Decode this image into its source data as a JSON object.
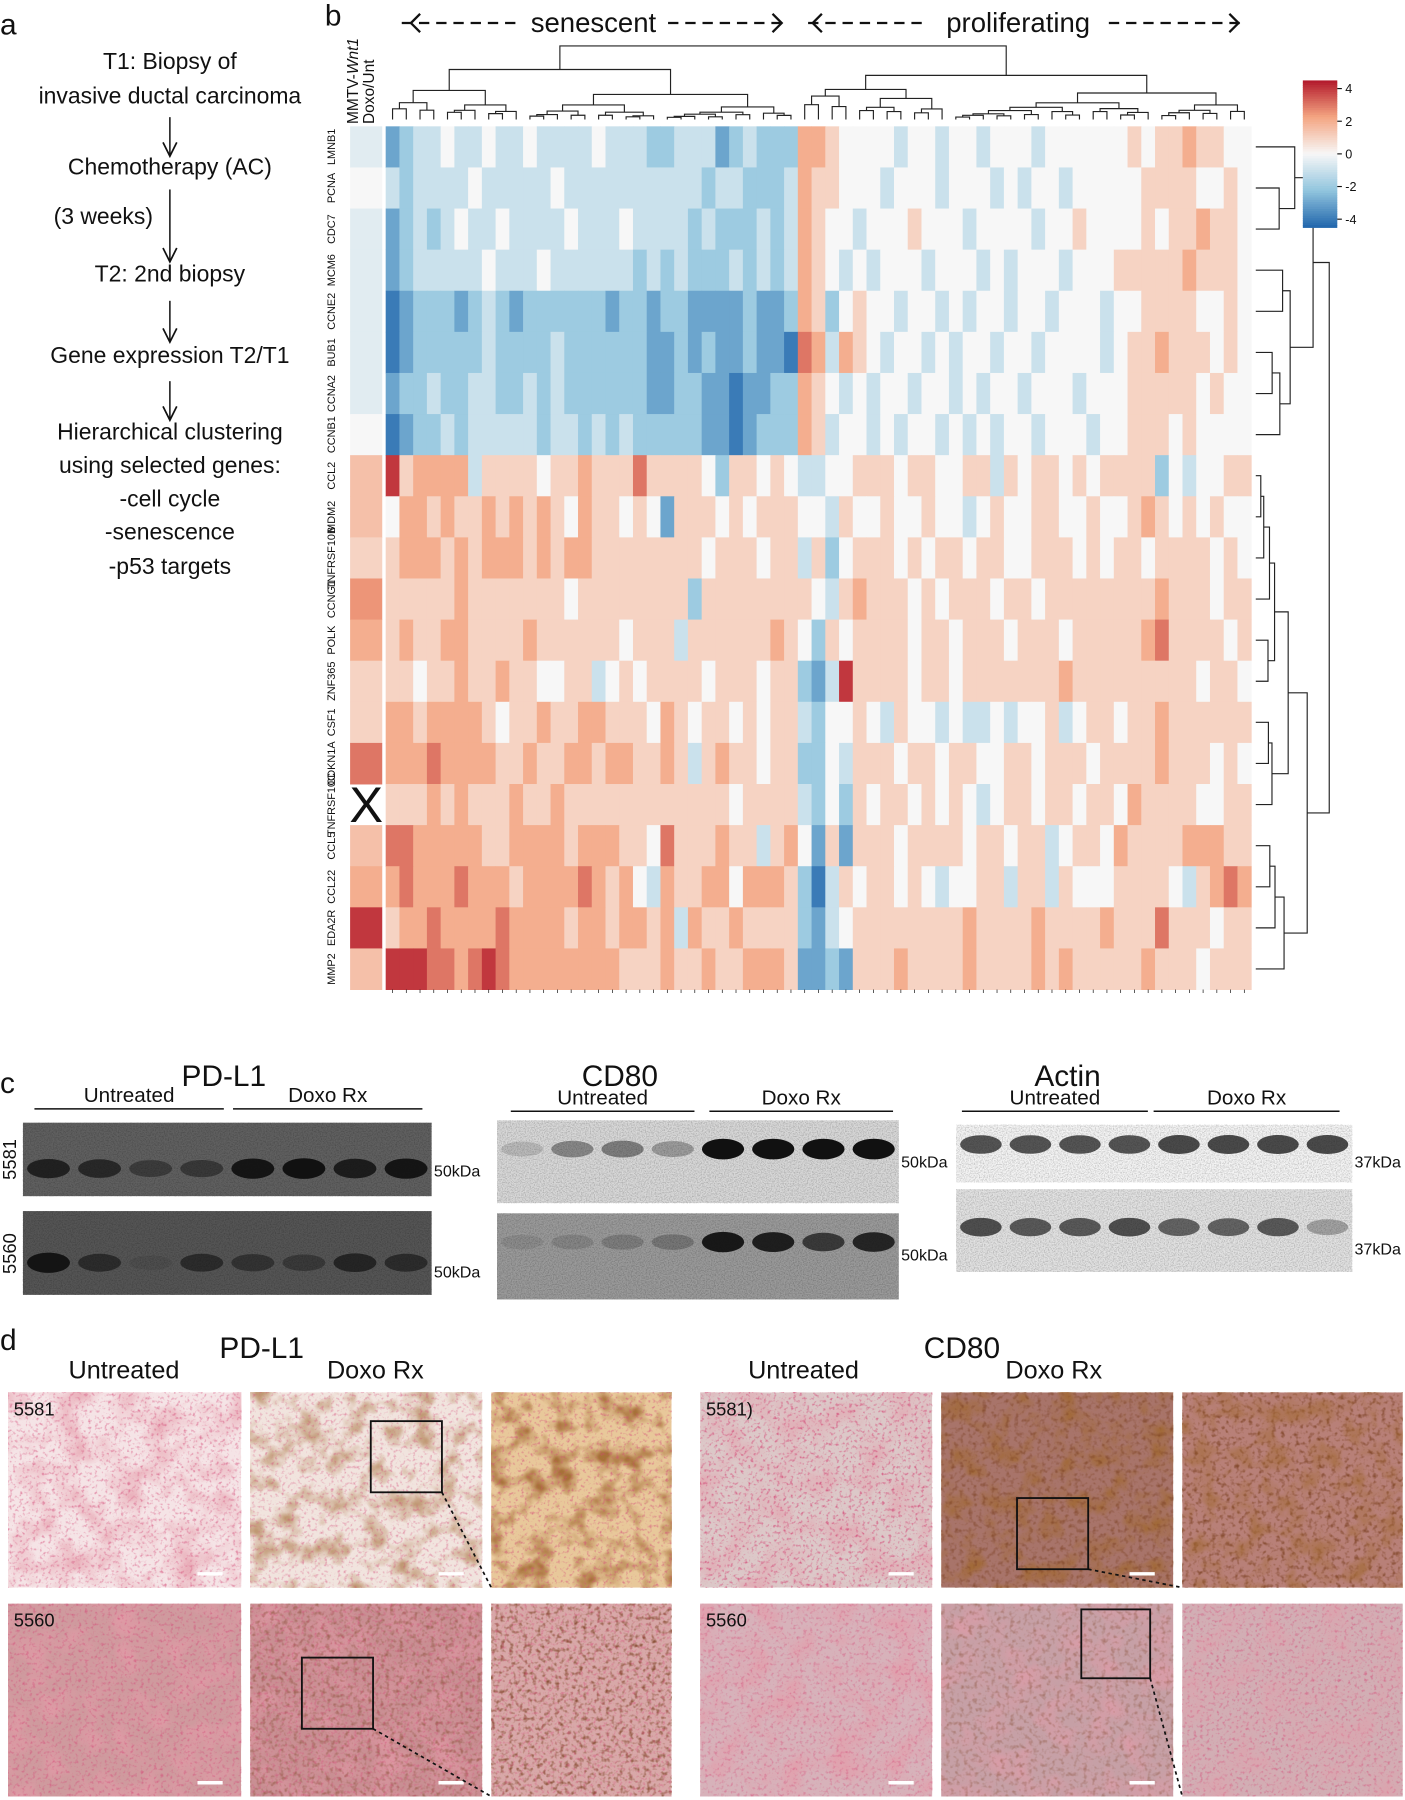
{
  "panel_a": {
    "label": "a",
    "steps": [
      "T1: Biopsy of",
      "invasive ductal carcinoma",
      "Chemotherapy (AC)",
      "T2: 2nd biopsy",
      "Gene expression T2/T1",
      "Hierarchical clustering",
      "using selected genes:",
      "-cell cycle",
      "-senescence",
      "-p53 targets"
    ],
    "interval": "(3 weeks)"
  },
  "chart_data": {
    "type": "heatmap",
    "label": "b",
    "column_groups": [
      "senescent",
      "proliferating"
    ],
    "row_header": [
      "MMTV-",
      "Wnt1"
    ],
    "reference_label": "Doxo/Unt",
    "missing_mark": "X",
    "rows": [
      "LMNB1",
      "PCNA",
      "CDC7",
      "MCM6",
      "CCNE2",
      "BUB1",
      "CCNA2",
      "CCNB1",
      "CCL2",
      "MDM2",
      "TNFRSF10B",
      "CCNG1",
      "POLK",
      "ZNF365",
      "CSF1",
      "CDKN1A",
      "TNFRSF10C",
      "CCL5",
      "CCL22",
      "EDA2R",
      "MMP2"
    ],
    "reference_values": [
      -0.5,
      0,
      -0.5,
      -0.5,
      -0.5,
      -0.5,
      -0.5,
      0,
      1.5,
      1.5,
      1,
      2.5,
      2,
      1,
      1,
      3,
      null,
      1.5,
      2,
      4,
      1.5
    ],
    "values": [
      [
        -3,
        -2,
        -1,
        -1,
        0,
        -1,
        -1,
        0,
        -1,
        -1,
        0,
        -1,
        -1,
        -1,
        -1,
        0,
        -1,
        -1,
        -1,
        -2,
        -2,
        -1,
        -1,
        -1,
        -3,
        -2,
        -1,
        -2,
        -2,
        -2,
        2,
        2,
        1,
        0,
        0,
        0,
        0,
        -1,
        0,
        0,
        -1,
        0,
        0,
        -1,
        0,
        0,
        0,
        -1,
        0,
        0,
        0,
        0,
        0,
        0,
        1,
        0,
        1,
        1,
        2,
        1,
        1,
        0,
        0
      ],
      [
        -1,
        -2,
        -1,
        -1,
        -1,
        -1,
        0,
        -1,
        -1,
        -1,
        -1,
        -1,
        0,
        -1,
        -1,
        -1,
        -1,
        -1,
        -1,
        -1,
        -1,
        -1,
        -1,
        -2,
        -1,
        -1,
        -2,
        -2,
        -2,
        -1,
        2,
        1,
        1,
        0,
        0,
        0,
        -1,
        0,
        0,
        0,
        -1,
        0,
        0,
        0,
        -1,
        0,
        -1,
        0,
        0,
        -1,
        0,
        0,
        0,
        0,
        0,
        1,
        1,
        1,
        1,
        0,
        0,
        1,
        0
      ],
      [
        -3,
        -2,
        -1,
        -2,
        -1,
        0,
        -1,
        -1,
        0,
        -1,
        -1,
        -1,
        -1,
        0,
        -1,
        -1,
        -1,
        0,
        -1,
        -1,
        -1,
        -1,
        -2,
        -1,
        -2,
        -2,
        -2,
        -1,
        -2,
        -1,
        2,
        1,
        0,
        0,
        -1,
        0,
        0,
        0,
        1,
        0,
        0,
        0,
        -1,
        0,
        0,
        0,
        0,
        -1,
        0,
        0,
        1,
        0,
        0,
        0,
        0,
        1,
        0,
        1,
        1,
        2,
        1,
        1,
        0
      ],
      [
        -3,
        -2,
        -1,
        -1,
        -1,
        -1,
        -1,
        0,
        -1,
        -1,
        -1,
        0,
        -1,
        -1,
        -1,
        -1,
        -1,
        -1,
        -2,
        -1,
        -2,
        -1,
        -2,
        -2,
        -2,
        -1,
        -2,
        -1,
        -2,
        -1,
        2,
        1,
        0,
        -1,
        0,
        -1,
        0,
        0,
        0,
        -1,
        0,
        0,
        0,
        -1,
        0,
        -1,
        0,
        0,
        0,
        -1,
        0,
        0,
        0,
        1,
        1,
        1,
        1,
        1,
        2,
        1,
        1,
        1,
        0
      ],
      [
        -4,
        -3,
        -2,
        -2,
        -2,
        -3,
        -2,
        -1,
        -2,
        -3,
        -2,
        -2,
        -2,
        -2,
        -2,
        -2,
        -3,
        -2,
        -2,
        -3,
        -2,
        -2,
        -3,
        -3,
        -3,
        -3,
        -2,
        -3,
        -3,
        -2,
        2,
        1,
        -2,
        0,
        1,
        0,
        0,
        -1,
        0,
        0,
        -1,
        0,
        -1,
        0,
        0,
        -1,
        0,
        0,
        -1,
        0,
        0,
        0,
        -1,
        0,
        0,
        1,
        1,
        1,
        1,
        0,
        0,
        1,
        0
      ],
      [
        -4,
        -3,
        -2,
        -2,
        -2,
        -2,
        -2,
        -1,
        -2,
        -2,
        -2,
        -2,
        -1,
        -2,
        -2,
        -2,
        -2,
        -2,
        -2,
        -3,
        -3,
        -2,
        -3,
        -2,
        -3,
        -3,
        -2,
        -3,
        -3,
        -4,
        3,
        2,
        -1,
        2,
        1,
        0,
        -1,
        0,
        0,
        -1,
        0,
        -1,
        0,
        0,
        -1,
        0,
        0,
        -1,
        0,
        0,
        0,
        0,
        -1,
        0,
        1,
        1,
        2,
        1,
        1,
        1,
        0,
        1,
        0
      ],
      [
        -3,
        -2,
        -2,
        -1,
        -2,
        -2,
        -1,
        -1,
        -2,
        -2,
        -1,
        -2,
        -1,
        -2,
        -2,
        -2,
        -2,
        -2,
        -2,
        -3,
        -3,
        -2,
        -2,
        -3,
        -3,
        -4,
        -3,
        -3,
        -2,
        -2,
        2,
        1,
        0,
        -1,
        0,
        -1,
        0,
        0,
        -1,
        0,
        0,
        -1,
        0,
        -1,
        0,
        0,
        -1,
        0,
        0,
        0,
        -1,
        0,
        0,
        0,
        1,
        1,
        1,
        1,
        1,
        0,
        1,
        0,
        0
      ],
      [
        -4,
        -3,
        -2,
        -2,
        -1,
        -2,
        -1,
        -1,
        -1,
        -1,
        -1,
        -2,
        -1,
        -1,
        -2,
        -1,
        -2,
        -1,
        -2,
        -2,
        -2,
        -2,
        -2,
        -3,
        -3,
        -4,
        -3,
        -2,
        -2,
        -2,
        2,
        1,
        -1,
        0,
        0,
        -1,
        0,
        -1,
        0,
        0,
        -1,
        0,
        -1,
        0,
        -1,
        0,
        0,
        -1,
        0,
        0,
        0,
        -1,
        0,
        0,
        1,
        1,
        1,
        0,
        1,
        0,
        0,
        0,
        0
      ],
      [
        4,
        1,
        2,
        2,
        2,
        2,
        -1,
        1,
        1,
        1,
        1,
        0,
        1,
        1,
        2,
        1,
        1,
        1,
        3,
        1,
        1,
        1,
        1,
        0,
        -2,
        1,
        1,
        0,
        1,
        0,
        -1,
        -1,
        0,
        0,
        1,
        1,
        1,
        0,
        1,
        1,
        0,
        0,
        1,
        1,
        -1,
        1,
        0,
        1,
        1,
        0,
        1,
        0,
        1,
        1,
        1,
        1,
        -2,
        0,
        -1,
        0,
        0,
        1,
        1
      ],
      [
        0,
        2,
        2,
        1,
        2,
        1,
        1,
        2,
        1,
        2,
        1,
        2,
        1,
        0,
        2,
        1,
        1,
        0,
        1,
        0,
        -3,
        1,
        1,
        1,
        0,
        1,
        0,
        1,
        1,
        1,
        0,
        0,
        -1,
        1,
        0,
        0,
        1,
        0,
        0,
        1,
        0,
        0,
        -1,
        0,
        1,
        0,
        0,
        1,
        1,
        0,
        0,
        1,
        0,
        0,
        1,
        2,
        1,
        0,
        1,
        0,
        1,
        0,
        0
      ],
      [
        1,
        2,
        2,
        2,
        1,
        2,
        1,
        2,
        2,
        2,
        1,
        2,
        1,
        2,
        2,
        1,
        1,
        1,
        1,
        1,
        1,
        1,
        1,
        0,
        1,
        1,
        1,
        0,
        1,
        1,
        -1,
        1,
        -2,
        0,
        1,
        1,
        1,
        0,
        1,
        0,
        1,
        1,
        0,
        1,
        1,
        0,
        0,
        1,
        1,
        1,
        0,
        1,
        0,
        1,
        1,
        0,
        1,
        1,
        1,
        1,
        0,
        1,
        0
      ],
      [
        1,
        1,
        1,
        1,
        1,
        2,
        1,
        1,
        1,
        1,
        1,
        1,
        1,
        0,
        1,
        1,
        1,
        1,
        1,
        1,
        1,
        1,
        -2,
        1,
        1,
        1,
        1,
        1,
        1,
        1,
        1,
        0,
        -1,
        1,
        2,
        1,
        1,
        1,
        0,
        1,
        0,
        1,
        1,
        1,
        0,
        1,
        1,
        0,
        1,
        1,
        1,
        1,
        1,
        1,
        1,
        1,
        2,
        1,
        1,
        1,
        0,
        1,
        1
      ],
      [
        1,
        2,
        1,
        1,
        2,
        2,
        1,
        1,
        1,
        1,
        2,
        1,
        1,
        1,
        1,
        1,
        1,
        0,
        1,
        1,
        1,
        -1,
        1,
        1,
        1,
        1,
        1,
        1,
        2,
        1,
        0,
        -2,
        1,
        0,
        1,
        1,
        1,
        1,
        0,
        1,
        1,
        0,
        1,
        1,
        1,
        0,
        1,
        1,
        1,
        0,
        1,
        1,
        1,
        1,
        1,
        2,
        3,
        1,
        1,
        1,
        1,
        0,
        1
      ],
      [
        1,
        1,
        0,
        1,
        1,
        2,
        1,
        1,
        2,
        1,
        1,
        0,
        0,
        1,
        1,
        -1,
        0,
        1,
        0,
        1,
        1,
        1,
        1,
        0,
        1,
        1,
        1,
        0,
        1,
        1,
        -2,
        -3,
        -1,
        4,
        1,
        1,
        1,
        1,
        0,
        1,
        1,
        0,
        1,
        1,
        1,
        1,
        1,
        1,
        1,
        2,
        1,
        1,
        1,
        1,
        1,
        1,
        1,
        1,
        1,
        0,
        1,
        1,
        0
      ],
      [
        2,
        2,
        1,
        2,
        2,
        2,
        2,
        1,
        0,
        1,
        1,
        2,
        1,
        1,
        2,
        2,
        1,
        1,
        1,
        0,
        2,
        1,
        0,
        1,
        1,
        0,
        1,
        0,
        1,
        1,
        -1,
        -2,
        0,
        0,
        1,
        0,
        -1,
        1,
        0,
        0,
        -1,
        0,
        -1,
        -1,
        0,
        -1,
        0,
        0,
        1,
        -1,
        0,
        1,
        1,
        0,
        1,
        1,
        2,
        1,
        1,
        1,
        1,
        1,
        1
      ],
      [
        2,
        2,
        2,
        3,
        2,
        2,
        2,
        2,
        1,
        1,
        2,
        1,
        1,
        2,
        2,
        1,
        2,
        2,
        1,
        1,
        2,
        1,
        -1,
        1,
        2,
        1,
        1,
        0,
        1,
        1,
        -2,
        -2,
        0,
        -1,
        1,
        1,
        1,
        0,
        1,
        1,
        0,
        1,
        1,
        0,
        0,
        1,
        1,
        0,
        1,
        1,
        1,
        0,
        1,
        1,
        1,
        1,
        2,
        1,
        1,
        1,
        0,
        1,
        0
      ],
      [
        1,
        1,
        1,
        2,
        1,
        2,
        1,
        1,
        1,
        2,
        1,
        1,
        2,
        1,
        1,
        1,
        1,
        1,
        1,
        1,
        1,
        1,
        1,
        1,
        1,
        0,
        1,
        1,
        1,
        1,
        -1,
        -2,
        0,
        -2,
        1,
        0,
        1,
        1,
        0,
        1,
        0,
        1,
        0,
        -1,
        0,
        1,
        1,
        0,
        1,
        1,
        0,
        1,
        1,
        0,
        2,
        1,
        1,
        1,
        1,
        0,
        0,
        1,
        1
      ],
      [
        3,
        3,
        2,
        2,
        2,
        2,
        2,
        1,
        1,
        2,
        2,
        2,
        2,
        1,
        2,
        2,
        2,
        1,
        1,
        0,
        3,
        1,
        1,
        1,
        2,
        1,
        1,
        -1,
        1,
        2,
        0,
        -3,
        1,
        -3,
        1,
        1,
        1,
        0,
        1,
        1,
        1,
        1,
        0,
        1,
        1,
        0,
        1,
        1,
        -1,
        0,
        1,
        1,
        0,
        2,
        1,
        1,
        1,
        1,
        2,
        2,
        2,
        1,
        1
      ],
      [
        2,
        3,
        2,
        2,
        2,
        3,
        2,
        2,
        2,
        1,
        2,
        2,
        2,
        2,
        3,
        2,
        1,
        2,
        0,
        -1,
        2,
        1,
        1,
        2,
        2,
        0,
        2,
        2,
        2,
        1,
        -2,
        -4,
        -1,
        1,
        0,
        1,
        1,
        0,
        1,
        0,
        -1,
        0,
        0,
        1,
        1,
        -1,
        1,
        1,
        -1,
        1,
        0,
        0,
        0,
        1,
        1,
        1,
        1,
        0,
        -1,
        1,
        2,
        3,
        2
      ],
      [
        1,
        2,
        2,
        3,
        2,
        2,
        2,
        2,
        3,
        2,
        2,
        2,
        2,
        1,
        2,
        2,
        1,
        2,
        2,
        1,
        2,
        -1,
        2,
        1,
        1,
        2,
        1,
        1,
        1,
        1,
        -2,
        -3,
        -1,
        0,
        1,
        1,
        1,
        1,
        1,
        1,
        1,
        1,
        2,
        1,
        1,
        1,
        1,
        2,
        1,
        1,
        1,
        1,
        2,
        1,
        1,
        1,
        3,
        1,
        1,
        1,
        0,
        1,
        1
      ],
      [
        4,
        4,
        4,
        3,
        3,
        2,
        3,
        4,
        3,
        2,
        2,
        2,
        2,
        2,
        2,
        2,
        2,
        1,
        1,
        1,
        2,
        1,
        1,
        2,
        1,
        1,
        2,
        2,
        2,
        1,
        -3,
        -3,
        -2,
        -3,
        1,
        1,
        1,
        2,
        1,
        1,
        1,
        1,
        2,
        1,
        1,
        1,
        1,
        2,
        1,
        2,
        1,
        1,
        1,
        1,
        1,
        2,
        1,
        1,
        1,
        0,
        1,
        1,
        1
      ]
    ],
    "clim": [
      -4.5,
      4.5
    ],
    "colorbar_ticks": [
      4,
      2,
      0,
      -2,
      -4
    ],
    "colormap": [
      "#2166ac",
      "#92c5de",
      "#f7f7f7",
      "#f4a582",
      "#b2182b"
    ]
  },
  "panel_c": {
    "label": "c",
    "samples": [
      "5581",
      "5560"
    ],
    "blots": [
      {
        "title": "PD-L1",
        "groups": [
          "Untreated",
          "Doxo Rx"
        ],
        "size_marker": "50kDa"
      },
      {
        "title": "CD80",
        "groups": [
          "Untreated",
          "Doxo Rx"
        ],
        "size_marker": "50kDa"
      },
      {
        "title": "Actin",
        "groups": [
          "Untreated",
          "Doxo Rx"
        ],
        "size_marker": "37kDa"
      }
    ]
  },
  "panel_d": {
    "label": "d",
    "stains": [
      {
        "title": "PD-L1",
        "groups": [
          "Untreated",
          "Doxo Rx"
        ],
        "samples": [
          "5581",
          "5560"
        ]
      },
      {
        "title": "CD80",
        "groups": [
          "Untreated",
          "Doxo Rx"
        ],
        "samples": [
          "5581)",
          "5560"
        ]
      }
    ]
  }
}
